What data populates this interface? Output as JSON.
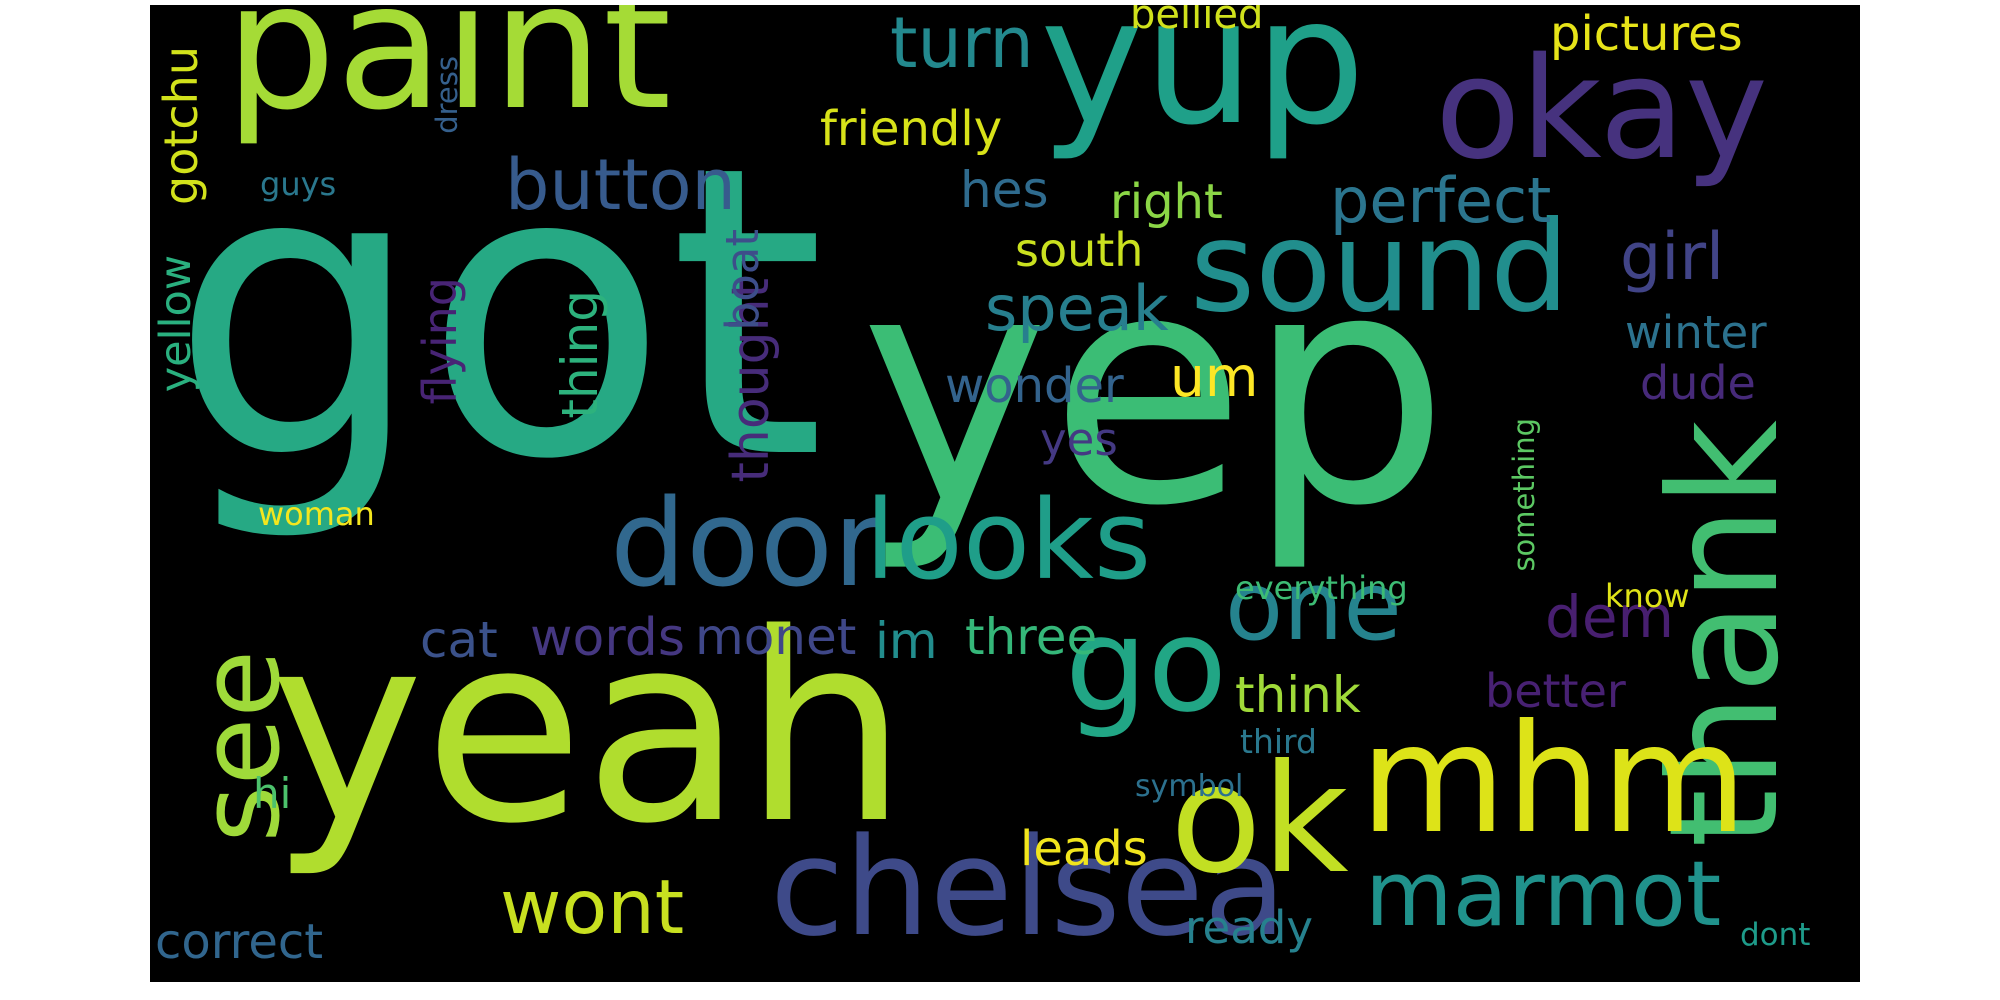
{
  "background": "#000000",
  "colormap": "viridis",
  "words": [
    {
      "text": "got",
      "color": "#26a984"
    },
    {
      "text": "yep",
      "color": "#3bbd75"
    },
    {
      "text": "yeah",
      "color": "#b0dd2e"
    },
    {
      "text": "paint",
      "color": "#a5db36"
    },
    {
      "text": "yup",
      "color": "#1fa089"
    },
    {
      "text": "okay",
      "color": "#46327e"
    },
    {
      "text": "sound",
      "color": "#218e8d"
    },
    {
      "text": "thank",
      "color": "#42be71"
    },
    {
      "text": "mhm",
      "color": "#dde318"
    },
    {
      "text": "chelsea",
      "color": "#3e4a89"
    },
    {
      "text": "door",
      "color": "#31688e"
    },
    {
      "text": "looks",
      "color": "#1f9e89"
    },
    {
      "text": "go",
      "color": "#21a685"
    },
    {
      "text": "ok",
      "color": "#c2df23"
    },
    {
      "text": "one",
      "color": "#25838e"
    },
    {
      "text": "see",
      "color": "#9fda3a"
    },
    {
      "text": "marmot",
      "color": "#20928c"
    },
    {
      "text": "wont",
      "color": "#c8e020"
    },
    {
      "text": "button",
      "color": "#375b8d"
    },
    {
      "text": "turn",
      "color": "#23898e"
    },
    {
      "text": "perfect",
      "color": "#2b758e"
    },
    {
      "text": "speak",
      "color": "#277f8e"
    },
    {
      "text": "girl",
      "color": "#414487"
    },
    {
      "text": "friendly",
      "color": "#d8e219"
    },
    {
      "text": "pictures",
      "color": "#e7e419"
    },
    {
      "text": "bellied",
      "color": "#d0e11c"
    },
    {
      "text": "hes",
      "color": "#2f6b8e"
    },
    {
      "text": "right",
      "color": "#8bd646"
    },
    {
      "text": "south",
      "color": "#cae11f"
    },
    {
      "text": "winter",
      "color": "#2c728e"
    },
    {
      "text": "dude",
      "color": "#472a7a"
    },
    {
      "text": "wonder",
      "color": "#33638d"
    },
    {
      "text": "um",
      "color": "#fde725"
    },
    {
      "text": "yes",
      "color": "#443983"
    },
    {
      "text": "dem",
      "color": "#481f70"
    },
    {
      "text": "better",
      "color": "#482173"
    },
    {
      "text": "cat",
      "color": "#3b528b"
    },
    {
      "text": "words",
      "color": "#453781"
    },
    {
      "text": "monet",
      "color": "#3f4788"
    },
    {
      "text": "im",
      "color": "#228d8d"
    },
    {
      "text": "three",
      "color": "#35b779"
    },
    {
      "text": "think",
      "color": "#a0da39"
    },
    {
      "text": "third",
      "color": "#2a788e"
    },
    {
      "text": "everything",
      "color": "#3dbc74"
    },
    {
      "text": "know",
      "color": "#dfe318"
    },
    {
      "text": "symbol",
      "color": "#2c718e"
    },
    {
      "text": "leads",
      "color": "#f1e51d"
    },
    {
      "text": "ready",
      "color": "#26818e"
    },
    {
      "text": "correct",
      "color": "#31668e"
    },
    {
      "text": "dont",
      "color": "#1e9b8a"
    },
    {
      "text": "hi",
      "color": "#4cc26c"
    },
    {
      "text": "guys",
      "color": "#2a788e"
    },
    {
      "text": "woman",
      "color": "#f4e61e"
    },
    {
      "text": "gotchu",
      "color": "#d2e21b"
    },
    {
      "text": "yellow",
      "color": "#2ab07f"
    },
    {
      "text": "dress",
      "color": "#35608d"
    },
    {
      "text": "flying",
      "color": "#482475"
    },
    {
      "text": "thing",
      "color": "#2db27d"
    },
    {
      "text": "thought",
      "color": "#472c7a"
    },
    {
      "text": "boat",
      "color": "#3d4e8a"
    },
    {
      "text": "something",
      "color": "#5cc863"
    }
  ]
}
